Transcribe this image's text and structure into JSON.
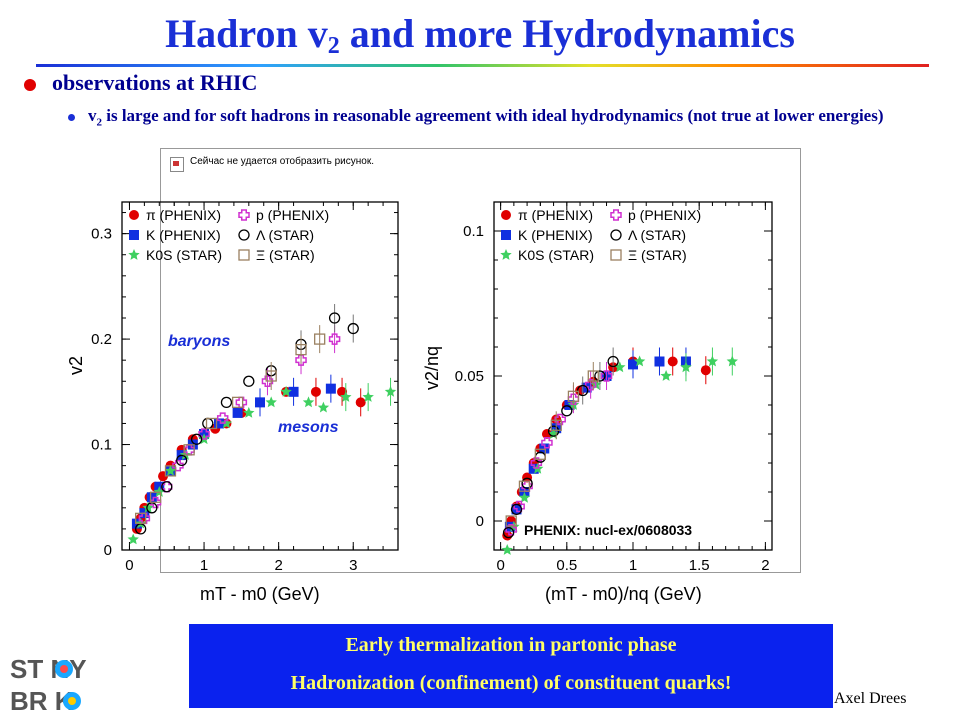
{
  "slide": {
    "title_main": "Hadron v",
    "title_sub": "2",
    "title_rest": " and more Hydrodynamics",
    "bullet1": "observations at RHIC",
    "bullet2_v": "v",
    "bullet2_sub": "2",
    "bullet2_text": " is large and for soft hadrons in reasonable agreement with ideal hydrodynamics (not true at lower energies)",
    "broken_image_text": "Сейчас не удается отобразить рисунок.",
    "box_line1": "Early thermalization in partonic phase",
    "box_line2": "Hadronization (confinement) of constituent quarks!",
    "author": "Axel Drees",
    "logo_line1": "ST NY",
    "logo_line2": "BR  K",
    "colors": {
      "title": "#1a2fd6",
      "box": "#0a22ee",
      "box_text": "#ffff66"
    }
  },
  "chart_data": [
    {
      "type": "scatter",
      "xlabel": "mT - m0 (GeV)",
      "ylabel": "v2",
      "xlim": [
        -0.1,
        3.6
      ],
      "ylim": [
        0,
        0.33
      ],
      "xticks": [
        "0",
        "1",
        "2",
        "3"
      ],
      "yticks": [
        "0",
        "0.1",
        "0.2",
        "0.3"
      ],
      "annotations": [
        "baryons",
        "mesons"
      ],
      "legend": [
        "π (PHENIX)",
        "p (PHENIX)",
        "K (PHENIX)",
        "Λ (STAR)",
        "K0S (STAR)",
        "Ξ (STAR)"
      ],
      "series": [
        {
          "name": "π (PHENIX)",
          "marker": "circle",
          "color": "#e00000",
          "x": [
            0.1,
            0.15,
            0.2,
            0.27,
            0.35,
            0.45,
            0.55,
            0.7,
            0.85,
            1.0,
            1.15,
            1.3,
            1.5,
            1.75,
            2.1,
            2.5,
            2.85,
            3.1
          ],
          "y": [
            0.02,
            0.03,
            0.04,
            0.05,
            0.06,
            0.07,
            0.08,
            0.095,
            0.105,
            0.11,
            0.115,
            0.12,
            0.13,
            0.14,
            0.15,
            0.15,
            0.15,
            0.14
          ]
        },
        {
          "name": "K (PHENIX)",
          "marker": "square",
          "color": "#1030e0",
          "x": [
            0.1,
            0.2,
            0.3,
            0.4,
            0.55,
            0.7,
            0.85,
            1.0,
            1.2,
            1.45,
            1.75,
            2.2,
            2.7
          ],
          "y": [
            0.025,
            0.035,
            0.05,
            0.06,
            0.075,
            0.09,
            0.1,
            0.11,
            0.12,
            0.13,
            0.14,
            0.15,
            0.153
          ]
        },
        {
          "name": "K0S (STAR)",
          "marker": "star",
          "color": "#3fd060",
          "x": [
            0.05,
            0.15,
            0.25,
            0.4,
            0.55,
            0.75,
            1.0,
            1.3,
            1.6,
            1.9,
            2.1,
            2.4,
            2.6,
            2.9,
            3.2,
            3.5
          ],
          "y": [
            0.01,
            0.025,
            0.04,
            0.055,
            0.075,
            0.09,
            0.105,
            0.12,
            0.13,
            0.14,
            0.15,
            0.14,
            0.135,
            0.145,
            0.145,
            0.15
          ]
        },
        {
          "name": "p (PHENIX)",
          "marker": "plus",
          "color": "#d030d0",
          "x": [
            0.2,
            0.35,
            0.5,
            0.65,
            0.8,
            1.0,
            1.25,
            1.5,
            1.85,
            2.3,
            2.75
          ],
          "y": [
            0.03,
            0.045,
            0.06,
            0.08,
            0.095,
            0.11,
            0.125,
            0.14,
            0.16,
            0.18,
            0.2
          ]
        },
        {
          "name": "Λ (STAR)",
          "marker": "open-circle",
          "color": "#000000",
          "x": [
            0.15,
            0.3,
            0.5,
            0.7,
            0.9,
            1.05,
            1.3,
            1.6,
            1.9,
            2.3,
            2.75,
            3.0
          ],
          "y": [
            0.02,
            0.04,
            0.06,
            0.085,
            0.105,
            0.12,
            0.14,
            0.16,
            0.17,
            0.195,
            0.22,
            0.21
          ]
        },
        {
          "name": "Ξ (STAR)",
          "marker": "open-square",
          "color": "#9a8060",
          "x": [
            0.15,
            0.35,
            0.55,
            0.8,
            1.1,
            1.45,
            1.9,
            2.3,
            2.55
          ],
          "y": [
            0.03,
            0.05,
            0.075,
            0.095,
            0.12,
            0.14,
            0.165,
            0.19,
            0.2
          ]
        }
      ]
    },
    {
      "type": "scatter",
      "xlabel": "(mT - m0)/nq (GeV)",
      "ylabel": "v2/nq",
      "xlim": [
        -0.05,
        2.05
      ],
      "ylim": [
        -0.01,
        0.11
      ],
      "xticks": [
        "0",
        "0.5",
        "1",
        "1.5",
        "2"
      ],
      "yticks": [
        "0",
        "0.05",
        "0.1"
      ],
      "reference": "PHENIX: nucl-ex/0608033",
      "legend": [
        "π (PHENIX)",
        "p (PHENIX)",
        "K (PHENIX)",
        "Λ (STAR)",
        "K0S (STAR)",
        "Ξ (STAR)"
      ],
      "series": [
        {
          "name": "π (PHENIX)",
          "marker": "circle",
          "color": "#e00000",
          "x": [
            0.05,
            0.08,
            0.12,
            0.16,
            0.2,
            0.25,
            0.3,
            0.35,
            0.42,
            0.5,
            0.6,
            0.7,
            0.85,
            1.0,
            1.3,
            1.55
          ],
          "y": [
            -0.005,
            0.0,
            0.005,
            0.01,
            0.015,
            0.02,
            0.025,
            0.03,
            0.035,
            0.04,
            0.045,
            0.048,
            0.053,
            0.055,
            0.055,
            0.052
          ]
        },
        {
          "name": "K (PHENIX)",
          "marker": "square",
          "color": "#1030e0",
          "x": [
            0.07,
            0.12,
            0.18,
            0.25,
            0.33,
            0.42,
            0.52,
            0.65,
            0.8,
            1.0,
            1.2,
            1.4
          ],
          "y": [
            -0.002,
            0.004,
            0.01,
            0.018,
            0.025,
            0.032,
            0.04,
            0.046,
            0.05,
            0.054,
            0.055,
            0.055
          ]
        },
        {
          "name": "K0S (STAR)",
          "marker": "star",
          "color": "#3fd060",
          "x": [
            0.05,
            0.1,
            0.18,
            0.28,
            0.4,
            0.55,
            0.72,
            0.9,
            1.05,
            1.25,
            1.4,
            1.6,
            1.75
          ],
          "y": [
            -0.01,
            -0.002,
            0.008,
            0.018,
            0.03,
            0.04,
            0.047,
            0.053,
            0.055,
            0.05,
            0.053,
            0.055,
            0.055
          ]
        },
        {
          "name": "p (PHENIX)",
          "marker": "plus",
          "color": "#d030d0",
          "x": [
            0.08,
            0.14,
            0.2,
            0.27,
            0.35,
            0.45,
            0.55,
            0.68,
            0.8
          ],
          "y": [
            -0.003,
            0.005,
            0.012,
            0.02,
            0.027,
            0.035,
            0.042,
            0.047,
            0.05
          ]
        },
        {
          "name": "Λ (STAR)",
          "marker": "open-circle",
          "color": "#000000",
          "x": [
            0.06,
            0.12,
            0.2,
            0.3,
            0.4,
            0.5,
            0.62,
            0.75,
            0.85
          ],
          "y": [
            -0.004,
            0.004,
            0.013,
            0.022,
            0.031,
            0.038,
            0.045,
            0.05,
            0.055
          ]
        },
        {
          "name": "Ξ (STAR)",
          "marker": "open-square",
          "color": "#9a8060",
          "x": [
            0.08,
            0.18,
            0.3,
            0.42,
            0.55,
            0.7
          ],
          "y": [
            0.0,
            0.012,
            0.023,
            0.033,
            0.043,
            0.05
          ]
        }
      ]
    }
  ]
}
